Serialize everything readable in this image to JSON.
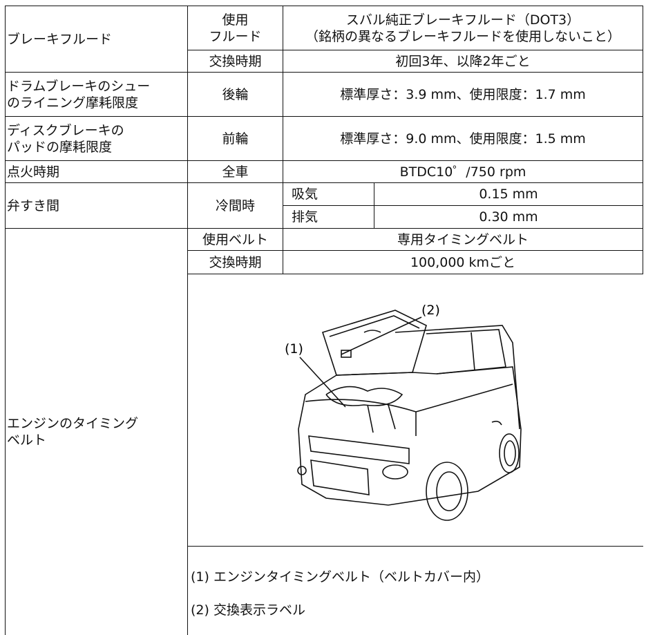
{
  "table": {
    "rows": [
      [
        "ブレーキフルード",
        "使用\nフルード",
        "スバル純正ブレーキフルード（DOT3）\n（銘柄の異なるブレーキフルードを使用しないこと）"
      ],
      [
        "交換時期",
        "初回3年、以降2年ごと"
      ],
      [
        "ドラムブレーキのシュー\nのライニング摩耗限度",
        "後輪",
        "標準厚さ：3.9 mm、使用限度：1.7 mm"
      ],
      [
        "ディスクブレーキの\nパッドの摩耗限度",
        "前輪",
        "標準厚さ：9.0 mm、使用限度：1.5 mm"
      ],
      [
        "点火時期",
        "全車",
        "BTDC10゜/750 rpm"
      ],
      [
        "弁すき間",
        "冷間時",
        "吸気",
        "0.15 mm"
      ],
      [
        "排気",
        "0.30 mm"
      ],
      [
        "エンジンのタイミング\nベルト",
        "使用ベルト",
        "専用タイミングベルト"
      ],
      [
        "交換時期",
        "100,000 kmごと"
      ]
    ],
    "figure": {
      "callouts": [
        "(1)",
        "(2)"
      ],
      "caption": [
        "(1) エンジンタイミングベルト（ベルトカバー内）",
        "(2) 交換表示ラベル"
      ]
    }
  }
}
